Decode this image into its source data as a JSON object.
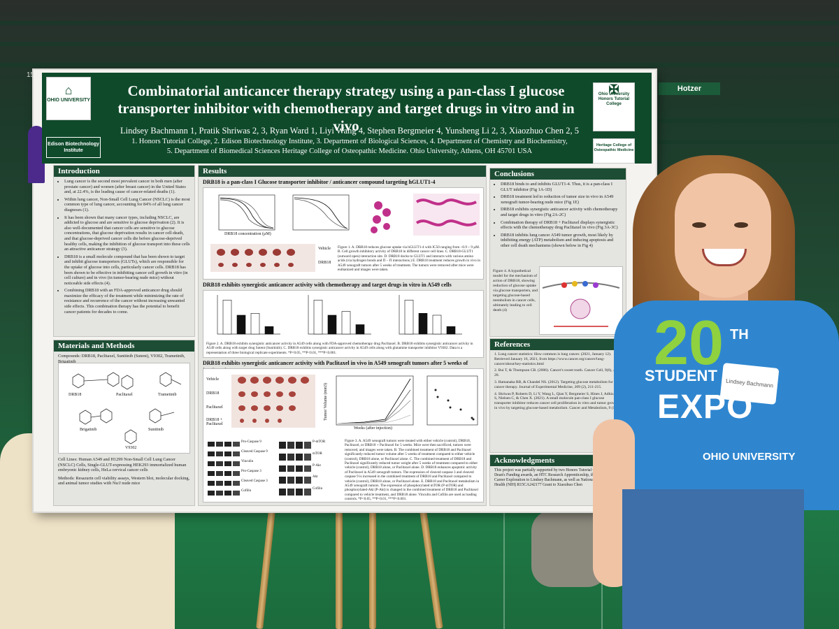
{
  "scene": {
    "background": "arena",
    "booth_number": "151",
    "arena_sign": "Hotzer"
  },
  "poster": {
    "logo_left": "OHIO UNIVERSITY",
    "logo_edison": "Edison Biotechnology Institute",
    "logo_right_top": "Ohio University Honors Tutorial College",
    "logo_right_bottom": "Heritage College of Osteopathic Medicine",
    "title_line1": "Combinatorial anticancer therapy strategy using a pan-class I glucose",
    "title_line2": "transporter inhibitor with chemotherapy and target drugs in vitro and in vivo",
    "authors": "Lindsey Bachmann 1, Pratik Shriwas 2, 3, Ryan Ward 1, Liyi Wang 4, Stephen Bergmeier 4, Yunsheng Li 2, 3, Xiaozhuo Chen 2, 5",
    "affiliation_line1": "1. Honors Tutorial College, 2. Edison Biotechnology Institute, 3. Department of Biological Sciences, 4. Department of Chemistry and Biochemistry,",
    "affiliation_line2": "5. Department of Biomedical Sciences Heritage College of Osteopathic Medicine. Ohio University, Athens, OH 45701 USA",
    "introduction": {
      "heading": "Introduction",
      "bullets": [
        "Lung cancer is the second most prevalent cancer in both men (after prostate cancer) and women (after breast cancer) in the United States and, at 22.4%, is the leading cause of cancer-related deaths (1).",
        "Within lung cancer, Non-Small Cell Lung Cancer (NSCLC) is the most common type of lung cancer, accounting for 84% of all lung cancer diagnoses (1).",
        "It has been shown that many cancer types, including NSCLC, are addicted to glucose and are sensitive to glucose deprivation (2). It is also well-documented that cancer cells are sensitive to glucose concentrations, that glucose deprivation results in cancer cell-death, and that glucose-deprived cancer cells die before glucose-deprived healthy cells, making the inhibition of glucose transport into these cells an attractive anticancer strategy (3).",
        "DRB18 is a small molecule compound that has been shown to target and inhibit glucose transporters (GLUTs), which are responsible for the uptake of glucose into cells, particularly cancer cells. DRB18 has been shown to be effective in inhibiting cancer cell growth in vitro (in cell culture) and in vivo (in tumor-bearing nude mice) without noticeable side effects (4).",
        "Combining DRB18 with an FDA-approved anticancer drug should maximize the efficacy of the treatment while minimizing the rate of resistance and recurrence of the cancer without increasing unwanted side effects. This combination therapy has the potential to benefit cancer patients for decades to come."
      ]
    },
    "materials": {
      "heading": "Materials and Methods",
      "compounds": "Compounds: DRB18, Paclitaxel, Sunitinib (Sutent), V9302, Trametinib, Brigatinib",
      "structures": [
        "DRB18",
        "Paclitaxel",
        "Trametinib",
        "Brigatinib",
        "Sunitinib",
        "V9302"
      ],
      "cell_lines": "Cell Lines: Human A549 and H1299 Non-Small Cell Lung Cancer (NSCLC) Cells, Single-GLUT-expressing HEK293 immortalized human embryonic kidney cells, HeLa cervical cancer cells",
      "methods": "Methods: Resazurin cell viability assays, Western blot, molecular docking, and animal tumor studies with Nu/J nude mice"
    },
    "results": {
      "heading": "Results",
      "fig1_title": "DRB18 is a pan-class I Glucose transporter inhibitor / anticancer compound targeting hGLUT1-4",
      "fig1_axis": "DRB18 concentration (µM)",
      "fig1_labels": [
        "Vehicle",
        "DRB18"
      ],
      "fig1_caption": "Figure 1. A. DRB18 reduces glucose uptake via hGLUT1-4 with IC50 ranging from ~0.9 ~ 9 µM. B. Cell growth inhibitory activity of DRB18 in different cancer cell lines. C. DRB18-GLUT1 (outward open) interaction site. D. DRB18 docks to GLUT1 and interacts with various amino acids (via hydrogen bonds and Π – Π interactions.) E. DRB18 treatment reduces growth in vivo in A549 xenograft tumors after 5 weeks of treatment. The tumors were removed after mice were euthanized and images were taken.",
      "fig2_title": "DRB18 exhibits synergistic anticancer activity with chemotherapy and target drugs in vitro in A549 cells",
      "fig2_caption": "Figure 2. A. DRB18 exhibits synergistic anticancer activity in A549 cells along with FDA-approved chemotherapy drug Paclitaxel. B. DRB18 exhibits synergistic anticancer activity in A549 cells along with target drug Sutent (Sunitinib). C. DRB18 exhibits synergistic anticancer activity in A549 cells along with glutamine transporter inhibitor V9302. Data is a representation of three biological replicate experiments. *P<0.05, **P<0.01, ***P<0.001.",
      "fig3_title": "DRB18 exhibits synergistic anticancer activity with Paclitaxel in vivo in A549 xenograft tumors after 5 weeks of treatment",
      "fig3_groups": [
        "Vehicle",
        "DRB18",
        "Paclitaxel",
        "DRB18 + Paclitaxel"
      ],
      "fig3_axis_x": "Weeks (after injection)",
      "fig3_axis_y": "Tumor Volume (mm3)",
      "fig3_blot_left": [
        "Pro-Caspase 9",
        "Cleaved Caspase 9",
        "Vinculin",
        "Pro-Caspase 3",
        "Cleaved Caspase 3",
        "Cofilin"
      ],
      "fig3_blot_right": [
        "P-mTOR",
        "mTOR",
        "P-Akt",
        "Akt",
        "Cofilin"
      ],
      "fig3_caption": "Figure 3. A. A549 xenograft tumors were treated with either vehicle (control), DRB18, Paclitaxel, or DRB18 + Paclitaxel for 5 weeks. Mice were then sacrificed, tumors were removed, and images were taken. B. The combined treatment of DRB18 and Paclitaxel significantly reduced tumor volume after 5 weeks of treatment compared to either vehicle (control), DRB18 alone, or Paclitaxel alone. C. The combined treatment of DRB18 and Paclitaxel significantly reduced tumor weight after 5 weeks of treatment compared to either vehicle (control), DRB18 alone, or Paclitaxel alone. D. DRB18 enhances apoptotic activity of Paclitaxel in A549 xenograft tumors. The expression of cleaved caspase 3 and cleaved caspase 9 is increased in the combined treatment of DRB18 and Paclitaxel compared to vehicle (control), DRB18 alone, or Paclitaxel alone. E. DRB18 and Paclitaxel metabolism in A549 xenograft tumors. The expression of phosphorylated mTOR (P-mTOR) and phosphorylated-Akt (P-Akt) is changed in the combined treatment of DRB18 and Paclitaxel compared to vehicle treatment, and DRB18 alone. Vinculin and Cofilin are used as loading controls. *P<0.05, **P<0.01, ***P<0.001."
    },
    "conclusions": {
      "heading": "Conclusions",
      "bullets": [
        "DRB18 binds to and inhibits GLUT1-4. Thus, it is a pan-class I GLUT inhibitor (Fig 1A-1D)",
        "DRB18 treatment led to reduction of tumor size in vivo in A549 xenograft tumor-bearing nude mice (Fig 1E)",
        "DRB18 exhibits synergistic anticancer activity with chemotherapy and target drugs in vitro (Fig 2A-2C)",
        "Combination therapy of DRB18 + Paclitaxel displays synergistic effects with the chemotherapy drug Paclitaxel in vivo (Fig 3A-3C)",
        "DRB18 inhibits lung cancer A549 tumor growth, most likely by inhibiting energy (ATP) metabolism and inducing apoptosis and other cell death mechanisms (shown below in Fig 4)"
      ],
      "fig4_caption": "Figure 4. A hypothetical model for the mechanism of action of DRB18, showing reduction of glucose uptake via glucose transporters, and targeting glucose-based metabolism in cancer cells, ultimately leading to cell death (4)"
    },
    "references": {
      "heading": "References",
      "items": [
        "1. Lung cancer statistics: How common is lung cancer. (2021, January 12). Retrieved January 16, 2021, from https://www.cancer.org/cancer/lung-cancer/about/key-statistics.html",
        "2. Bui T, & Thompson CB. (2006). Cancer's sweet tooth. Cancer Cell, 9(6), 419-20.",
        "3. Hamanaka RB, & Chandel NS. (2012). Targeting glucose metabolism for cancer therapy. Journal of Experimental Medicine, 209 (2), 211-215.",
        "4. Shriwas P, Roberts D, Li Y, Wang L, Qian Y, Bergmeier S, Hines J, Adhicary S, Nielsen C, & Chen X. (2021). A small molecule pan-class I glucose transporter inhibitor reduces cancer cell proliferation in vitro and tumor growth in vivo by targeting glucose-based metabolism. Cancer and Metabolism, 9 (14)."
      ]
    },
    "acknowledgments": {
      "heading": "Acknowledgments",
      "text": "This project was partially supported by two Honors Tutorial College (HTC) Dean's Funding awards, an HTC Research Apprenticeship, the Program to Air Career Exploration to Lindsey Bachmann, as well as National Institute of Health (NIH) R15CA242177 Grant to Xiaozhuo Chen"
    }
  },
  "person": {
    "name_tag": "Lindsey Bachmann",
    "shirt_number": "20",
    "shirt_superscript": "TH",
    "shirt_line1": "STUDENT",
    "shirt_line2": "EXPO",
    "shirt_line3": "OHIO UNIVERSITY"
  },
  "colors": {
    "banner": "#0f4a2b",
    "section_header": "#1d4d34",
    "shirt": "#2f86cf",
    "expo_green": "#8fd13f",
    "floor": "#1f7a46"
  }
}
